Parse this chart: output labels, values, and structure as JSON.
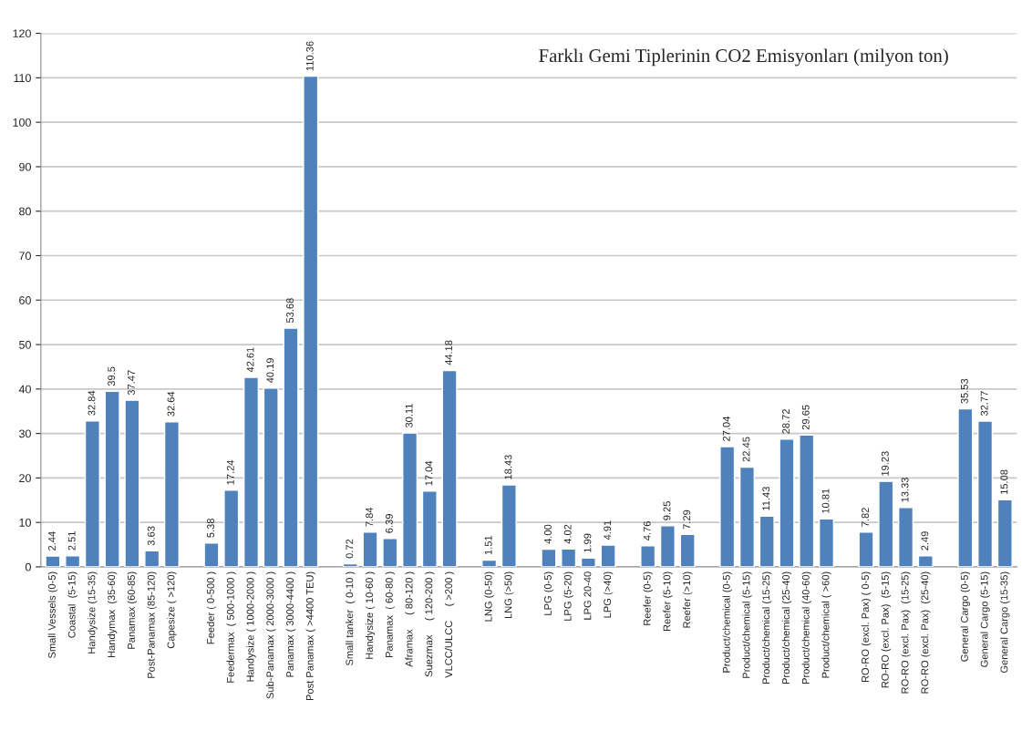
{
  "chart_data": {
    "type": "bar",
    "title": "Farklı Gemi Tiplerinin CO2 Emisyonları (milyon ton)",
    "categories": [
      "Small Vessels (0-5)",
      "Coastal  (5-15)",
      "Handysize (15-35)",
      "Handymax  (35-60)",
      "Panamax (60-85)",
      "Post-Panamax (85-120)",
      "Capesize ( >120)",
      null,
      "Feeder ( 0-500 )",
      "Feedermax  ( 500-1000 )",
      "Handysize ( 1000-2000 )",
      "Sub-Panamax ( 2000-3000 )",
      "Panamax ( 3000-4400 )",
      "Post Panamax ( >4400 TEU)",
      null,
      "Small tanker  ( 0-10 )",
      "Handysize ( 10-60 )",
      "Panamax  ( 60-80 )",
      "Aframax     ( 80-120 )",
      "Suezmax     ( 120-200 )",
      "VLCC/ULCC     ( >200 )",
      null,
      "LNG (0-50)",
      "LNG (>50)",
      null,
      "LPG (0-5)",
      "LPG (5-20)",
      "LPG 20-40",
      "LPG (>40)",
      null,
      "Reefer (0-5)",
      "Reefer (5-10)",
      "Reefer (>10)",
      null,
      "Product/chemical (0-5)",
      "Product/chemical (5-15)",
      "Product/chemical (15-25)",
      "Product/chemical (25-40)",
      "Product/chemical (40-60)",
      "Product/chemical ( >60)",
      null,
      "RO-RO (excl. Pax) ( 0-5)",
      "RO-RO (excl. Pax)  (5-15)",
      "RO-RO (excl. Pax)  (15-25)",
      "RO-RO (excl. Pax)  (25-40)",
      null,
      "General Cargo (0-5)",
      "General Cargo (5-15)",
      "General Cargo (15-35)"
    ],
    "values": [
      2.44,
      2.51,
      32.84,
      39.5,
      37.47,
      3.63,
      32.64,
      null,
      5.38,
      17.24,
      42.61,
      40.19,
      53.68,
      110.36,
      null,
      0.72,
      7.84,
      6.39,
      30.11,
      17.04,
      44.18,
      null,
      1.51,
      18.43,
      null,
      4.0,
      4.02,
      1.99,
      4.91,
      null,
      4.76,
      9.25,
      7.29,
      null,
      27.04,
      22.45,
      11.43,
      28.72,
      29.65,
      10.81,
      null,
      7.82,
      19.23,
      13.33,
      2.49,
      null,
      35.53,
      32.77,
      15.08
    ],
    "value_labels": [
      "2.44",
      "2.51",
      "32.84",
      "39.5",
      "37.47",
      "3.63",
      "32.64",
      null,
      "5.38",
      "17.24",
      "42.61",
      "40.19",
      "53.68",
      "110.36",
      null,
      "0.72",
      "7.84",
      "6.39",
      "30.11",
      "17.04",
      "44.18",
      null,
      "1.51",
      "18.43",
      null,
      "4.00",
      "4.02",
      "1.99",
      "4.91",
      null,
      "4.76",
      "9.25",
      "7.29",
      null,
      "27.04",
      "22.45",
      "11.43",
      "28.72",
      "29.65",
      "10.81",
      null,
      "7.82",
      "19.23",
      "13.33",
      "2.49",
      null,
      "35.53",
      "32.77",
      "15.08"
    ],
    "color": "#4f81bd",
    "ylim": [
      0,
      120
    ],
    "yticks": [
      0,
      10,
      20,
      30,
      40,
      50,
      60,
      70,
      80,
      90,
      100,
      110,
      120
    ],
    "grid": "y",
    "legend": false
  }
}
